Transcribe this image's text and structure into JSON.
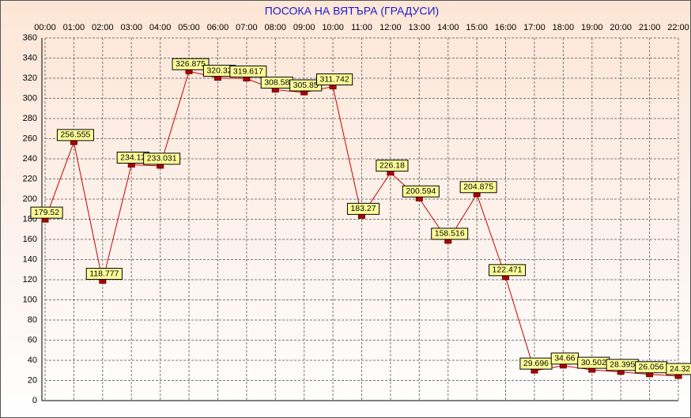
{
  "chart_data": {
    "type": "line",
    "title": "ПОСОКА НА ВЯТЪРА    (ГРАДУСИ)",
    "categories": [
      "00:00",
      "01:00",
      "02:00",
      "03:00",
      "04:00",
      "05:00",
      "06:00",
      "07:00",
      "08:00",
      "09:00",
      "10:00",
      "11:00",
      "12:00",
      "13:00",
      "14:00",
      "15:00",
      "16:00",
      "17:00",
      "18:00",
      "19:00",
      "20:00",
      "21:00",
      "22:00"
    ],
    "values": [
      179.52,
      256.555,
      118.777,
      234.12,
      233.031,
      326.875,
      320.32,
      319.617,
      308.58,
      305.85,
      311.742,
      183.27,
      226.18,
      200.594,
      158.516,
      204.875,
      122.471,
      29.696,
      34.66,
      30.502,
      28.395,
      26.056,
      24.32
    ],
    "color": "#cc0000",
    "ylim": [
      0,
      360
    ],
    "yticks": [
      0,
      20,
      40,
      60,
      80,
      100,
      120,
      140,
      160,
      180,
      200,
      220,
      240,
      260,
      280,
      300,
      320,
      340,
      360
    ],
    "grid": true
  }
}
